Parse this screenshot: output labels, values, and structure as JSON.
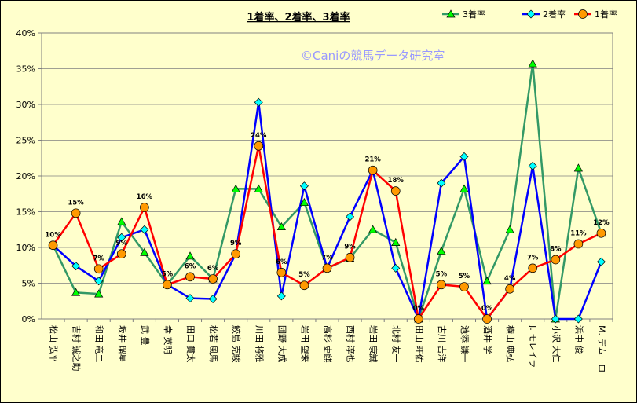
{
  "chart_data": {
    "type": "line",
    "title": "1着率、2着率、3着率",
    "watermark": "©Caniの競馬データ研究室",
    "xlabel": "",
    "ylabel": "",
    "ylim": [
      0,
      40
    ],
    "yticks": [
      "0%",
      "5%",
      "10%",
      "15%",
      "20%",
      "25%",
      "30%",
      "35%",
      "40%"
    ],
    "grid": true,
    "legend_position": "top-right",
    "categories": [
      "松山 弘平",
      "吉村 誠之助",
      "和田 竜二",
      "坂井 瑠星",
      "武 豊",
      "幸 英明",
      "田口 貫太",
      "松若 風馬",
      "鮫島 克駿",
      "川田 将雅",
      "団野 大成",
      "岩田 望来",
      "高杉 吏麒",
      "西村 淳也",
      "岩田 康誠",
      "北村 友一",
      "田山 旺佑",
      "古川 吉洋",
      "池添 謙一",
      "酒井 学",
      "横山 典弘",
      "J. モレイラ",
      "小沢 大仁",
      "浜中 俊",
      "M. デムーロ"
    ],
    "series": [
      {
        "name": "3着率",
        "color": "#339966",
        "marker": "triangle",
        "values": [
          10.3,
          3.7,
          3.5,
          13.6,
          9.3,
          4.8,
          8.8,
          5.6,
          18.2,
          18.2,
          12.9,
          16.3,
          7.1,
          8.5,
          12.5,
          10.7,
          0.0,
          9.5,
          18.2,
          5.3,
          12.5,
          35.7,
          0.0,
          21.1,
          12.0
        ]
      },
      {
        "name": "2着率",
        "color": "#0000ff",
        "marker": "diamond",
        "values": [
          10.3,
          7.4,
          5.3,
          11.4,
          12.5,
          4.8,
          2.9,
          2.8,
          9.1,
          30.3,
          3.2,
          18.6,
          7.1,
          14.3,
          20.8,
          7.1,
          0.0,
          19.0,
          22.7,
          0.0,
          4.2,
          21.4,
          0.0,
          0.0,
          8.0
        ]
      },
      {
        "name": "1着率",
        "color": "#ff0000",
        "marker": "circle",
        "values": [
          10.3,
          14.8,
          7.0,
          9.1,
          15.6,
          4.8,
          5.9,
          5.6,
          9.1,
          24.2,
          6.5,
          4.7,
          7.1,
          8.6,
          20.8,
          17.9,
          0.0,
          4.8,
          4.5,
          0.0,
          4.2,
          7.1,
          8.3,
          10.5,
          12.0
        ]
      }
    ],
    "data_labels": [
      "10%",
      "15%",
      "7%",
      "9%",
      "16%",
      "5%",
      "6%",
      "6%",
      "9%",
      "24%",
      "6%",
      "5%",
      "7%",
      "9%",
      "21%",
      "18%",
      "0%",
      "5%",
      "5%",
      "0%",
      "4%",
      "7%",
      "8%",
      "11%",
      "12%"
    ]
  }
}
